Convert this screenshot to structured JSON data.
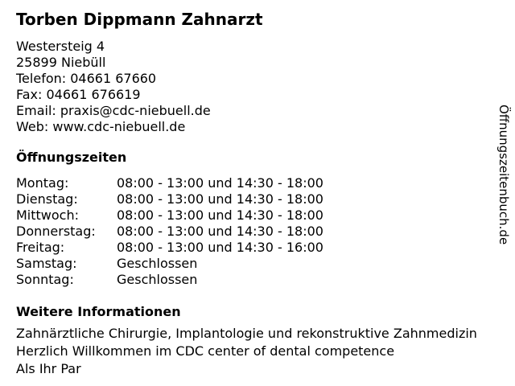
{
  "colors": {
    "background": "#ffffff",
    "text": "#000000"
  },
  "header": {
    "title": "Torben Dippmann Zahnarzt"
  },
  "contact": {
    "lines": [
      "Westersteig 4",
      "25899 Niebüll",
      "Telefon: 04661 67660",
      "Fax: 04661 676619",
      "Email: praxis@cdc-niebuell.de",
      "Web: www.cdc-niebuell.de"
    ]
  },
  "opening_hours": {
    "heading": "Öffnungszeiten",
    "rows": [
      {
        "day": "Montag:",
        "hours": "08:00 - 13:00 und 14:30 - 18:00"
      },
      {
        "day": "Dienstag:",
        "hours": "08:00 - 13:00 und 14:30 - 18:00"
      },
      {
        "day": "Mittwoch:",
        "hours": "08:00 - 13:00 und 14:30 - 18:00"
      },
      {
        "day": "Donnerstag:",
        "hours": "08:00 - 13:00 und 14:30 - 18:00"
      },
      {
        "day": "Freitag:",
        "hours": "08:00 - 13:00 und 14:30 - 16:00"
      },
      {
        "day": "Samstag:",
        "hours": "Geschlossen"
      },
      {
        "day": "Sonntag:",
        "hours": "Geschlossen"
      }
    ]
  },
  "more_info": {
    "heading": "Weitere Informationen",
    "paragraphs": [
      "Zahnärztliche Chirurgie, Implantologie und rekonstruktive Zahnmedizin",
      "Herzlich Willkommen im CDC center of dental competence",
      "Als Ihr Par"
    ]
  },
  "watermark": {
    "text": "Öffnungszeitenbuch.de"
  }
}
